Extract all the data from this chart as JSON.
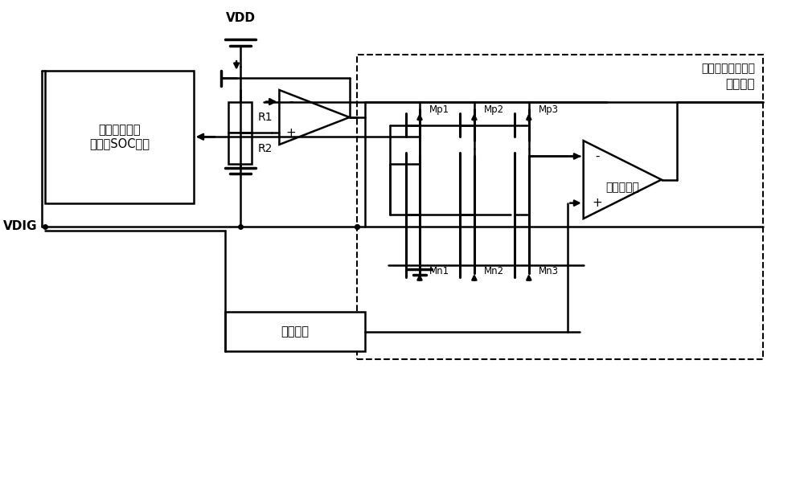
{
  "fig_width": 10.0,
  "fig_height": 6.11,
  "bg_color": "#ffffff",
  "line_color": "#000000",
  "line_width": 1.8,
  "text_color": "#000000",
  "vdd_label": "VDD",
  "vdig_label": "VDIG",
  "ref_voltage_label": "基准电压",
  "soc_box_label": "亚阈值区工作\n的数字SOC电路",
  "clock_box_label": "时钟模块",
  "detect_circuit_label": "工作状态检测电路",
  "freq_comp_label": "频率比较器",
  "r1_label": "R1",
  "r2_label": "R2",
  "mp1_label": "Mp1",
  "mp2_label": "Mp2",
  "mp3_label": "Mp3",
  "mn1_label": "Mn1",
  "mn2_label": "Mn2",
  "mn3_label": "Mn3"
}
